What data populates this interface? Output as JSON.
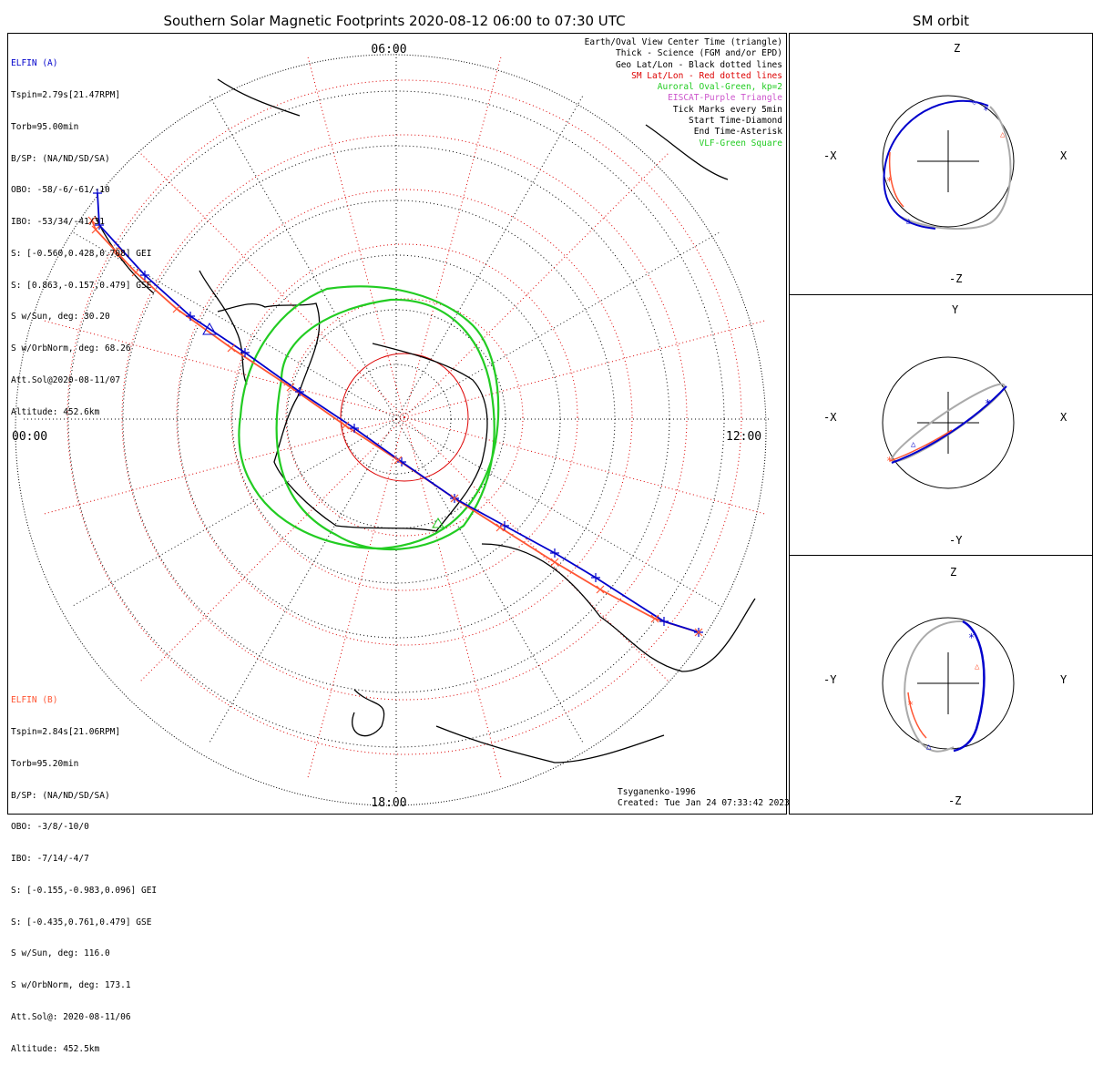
{
  "title": "Southern Solar Magnetic Footprints 2020-08-12 06:00 to 07:30 UTC",
  "orbit_title": "SM orbit",
  "elfin_a": {
    "name": "ELFIN (A)",
    "color": "#0000cc",
    "lines": [
      "Tspin=2.79s[21.47RPM]",
      "Torb=95.00min",
      "B/SP: (NA/ND/SD/SA)",
      "OBO: -58/-6/-61/-10",
      "IBO: -53/34/-41/31",
      "S: [-0.560,0.428,0.708] GEI",
      "S: [0.863,-0.157,0.479] GSE",
      "S w/Sun, deg: 30.20",
      "S w/OrbNorm, deg: 68.26",
      "Att.Sol@2020-08-11/07",
      "Altitude: 452.6km"
    ]
  },
  "elfin_b": {
    "name": "ELFIN (B)",
    "color": "#ff5533",
    "lines": [
      "Tspin=2.84s[21.06RPM]",
      "Torb=95.20min",
      "B/SP: (NA/ND/SD/SA)",
      "OBO: -3/8/-10/0",
      "IBO: -7/14/-4/7",
      "S: [-0.155,-0.983,0.096] GEI",
      "S: [-0.435,0.761,0.479] GSE",
      "S w/Sun, deg: 116.0",
      "S w/OrbNorm, deg: 173.1",
      "Att.Sol@: 2020-08-11/06",
      "Altitude: 452.5km"
    ]
  },
  "legend": [
    {
      "text": "Earth/Oval View Center Time (triangle)",
      "color": "#000000"
    },
    {
      "text": "Thick - Science (FGM and/or EPD)",
      "color": "#000000"
    },
    {
      "text": "Geo Lat/Lon - Black dotted lines",
      "color": "#000000"
    },
    {
      "text": "SM Lat/Lon - Red dotted lines",
      "color": "#dd0000"
    },
    {
      "text": "Auroral Oval-Green, kp=2",
      "color": "#22cc22"
    },
    {
      "text": "EISCAT-Purple Triangle",
      "color": "#cc55cc"
    },
    {
      "text": "Tick Marks every 5min",
      "color": "#000000"
    },
    {
      "text": "Start Time-Diamond",
      "color": "#000000"
    },
    {
      "text": "End Time-Asterisk",
      "color": "#000000"
    },
    {
      "text": "VLF-Green Square",
      "color": "#22cc22"
    }
  ],
  "mlt_labels": {
    "top": "06:00",
    "bottom": "18:00",
    "left": "00:00",
    "right": "12:00"
  },
  "credits": {
    "line1": "Tsyganenko-1996",
    "line2": "Created: Tue Jan 24 07:33:42 2023"
  },
  "orbit_panels": [
    {
      "name": "xz",
      "top": "Z",
      "bottom": "-Z",
      "left": "-X",
      "right": "X"
    },
    {
      "name": "xy",
      "top": "Y",
      "bottom": "-Y",
      "left": "-X",
      "right": "X"
    },
    {
      "name": "yz",
      "top": "Z",
      "bottom": "-Z",
      "left": "-Y",
      "right": "Y"
    }
  ],
  "chart_data": {
    "type": "polar-footprint-map",
    "center": "south magnetic pole",
    "mlt_axis": [
      "00:00",
      "06:00",
      "12:00",
      "18:00"
    ],
    "auroral_oval_kp": 2,
    "series": [
      {
        "name": "ELFIN (A)",
        "color": "#0000cc",
        "ticks_every_min": 5
      },
      {
        "name": "ELFIN (B)",
        "color": "#ff5533",
        "ticks_every_min": 5
      }
    ]
  }
}
